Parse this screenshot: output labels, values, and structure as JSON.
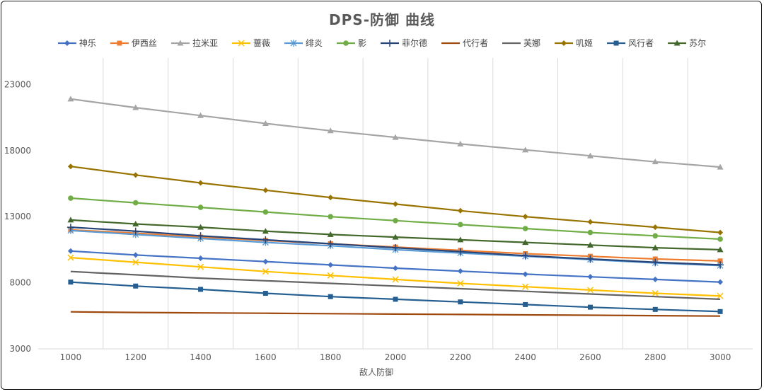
{
  "chart_data": {
    "type": "line",
    "title": "DPS-防御  曲线",
    "xlabel": "敌人防御",
    "ylabel": "",
    "x": [
      1000,
      1200,
      1400,
      1600,
      1800,
      2000,
      2200,
      2400,
      2600,
      2800,
      3000
    ],
    "x_tick_labels": [
      "1000",
      "1200",
      "1400",
      "1600",
      "1800",
      "2000",
      "2200",
      "2400",
      "2600",
      "2800",
      "3000"
    ],
    "ylim": [
      3000,
      25000
    ],
    "y_ticks": [
      3000,
      8000,
      13000,
      18000,
      23000
    ],
    "y_tick_labels": [
      "3000",
      "8000",
      "13000",
      "18000",
      "23000"
    ],
    "legend_position": "top",
    "grid": "vertical",
    "series": [
      {
        "name": "神乐",
        "color": "#4472C4",
        "marker": "diamond",
        "values": [
          10400,
          10100,
          9850,
          9600,
          9350,
          9100,
          8880,
          8650,
          8450,
          8250,
          8050
        ]
      },
      {
        "name": "伊西丝",
        "color": "#ED7D31",
        "marker": "square",
        "values": [
          12000,
          11750,
          11450,
          11200,
          10950,
          10700,
          10450,
          10200,
          10000,
          9800,
          9650
        ]
      },
      {
        "name": "拉米亚",
        "color": "#A5A5A5",
        "marker": "triangle",
        "values": [
          21900,
          21250,
          20650,
          20050,
          19500,
          19000,
          18500,
          18050,
          17600,
          17150,
          16750
        ]
      },
      {
        "name": "蔷薇",
        "color": "#FFC000",
        "marker": "x",
        "values": [
          9900,
          9550,
          9200,
          8850,
          8550,
          8250,
          7950,
          7700,
          7450,
          7200,
          7000
        ]
      },
      {
        "name": "绯炎",
        "color": "#5B9BD5",
        "marker": "star",
        "values": [
          11950,
          11650,
          11350,
          11050,
          10800,
          10500,
          10250,
          10000,
          9750,
          9500,
          9300
        ]
      },
      {
        "name": "影",
        "color": "#70AD47",
        "marker": "circle",
        "values": [
          14400,
          14050,
          13700,
          13350,
          13000,
          12700,
          12400,
          12100,
          11800,
          11550,
          11300
        ]
      },
      {
        "name": "菲尔德",
        "color": "#264478",
        "marker": "plus",
        "values": [
          12200,
          11900,
          11550,
          11250,
          10950,
          10650,
          10350,
          10050,
          9800,
          9550,
          9350
        ]
      },
      {
        "name": "代行者",
        "color": "#9E480E",
        "marker": "none",
        "values": [
          5800,
          5750,
          5720,
          5690,
          5660,
          5630,
          5600,
          5570,
          5540,
          5510,
          5480
        ]
      },
      {
        "name": "芙娜",
        "color": "#636363",
        "marker": "none",
        "values": [
          8850,
          8600,
          8350,
          8150,
          7950,
          7750,
          7550,
          7350,
          7150,
          6950,
          6750
        ]
      },
      {
        "name": "叽姬",
        "color": "#997300",
        "marker": "diamond",
        "values": [
          16800,
          16150,
          15550,
          15000,
          14450,
          13950,
          13450,
          13000,
          12600,
          12200,
          11800
        ]
      },
      {
        "name": "风行者",
        "color": "#255E91",
        "marker": "square",
        "values": [
          8050,
          7750,
          7500,
          7200,
          6950,
          6750,
          6550,
          6350,
          6150,
          5980,
          5820
        ]
      },
      {
        "name": "苏尔",
        "color": "#43682B",
        "marker": "triangle",
        "values": [
          12750,
          12450,
          12200,
          11900,
          11650,
          11450,
          11250,
          11050,
          10850,
          10650,
          10500
        ]
      }
    ]
  }
}
